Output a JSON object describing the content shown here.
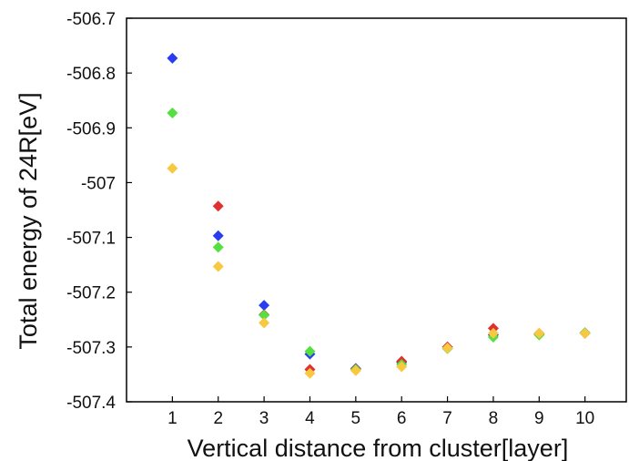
{
  "chart_data": {
    "type": "scatter",
    "title": "",
    "xlabel": "Vertical distance from cluster[layer]",
    "ylabel": "Total energy of 24R[eV]",
    "xlim": [
      0,
      10.9
    ],
    "ylim": [
      -507.4,
      -506.7
    ],
    "x_ticks": [
      1,
      2,
      3,
      4,
      5,
      6,
      7,
      8,
      9,
      10
    ],
    "y_ticks": [
      -506.7,
      -506.8,
      -506.9,
      -507,
      -507.1,
      -507.2,
      -507.3,
      -507.4
    ],
    "grid": false,
    "legend": "none",
    "marker": "diamond",
    "series": [
      {
        "color": "#2a3cf0",
        "x": [
          1,
          2,
          3,
          4,
          5,
          6,
          7,
          8,
          9,
          10
        ],
        "y": [
          -506.773,
          -507.097,
          -507.224,
          -507.313,
          -507.339,
          -507.328,
          -507.3,
          -507.278,
          -507.276,
          -507.274
        ]
      },
      {
        "color": "#e03030",
        "x": [
          2,
          3,
          4,
          5,
          6,
          7,
          8,
          9,
          10
        ],
        "y": [
          -507.043,
          -507.241,
          -507.341,
          -507.34,
          -507.326,
          -507.3,
          -507.266,
          -507.275,
          -507.275
        ]
      },
      {
        "color": "#55e040",
        "x": [
          1,
          2,
          3,
          4,
          5,
          6,
          7,
          8,
          9,
          10
        ],
        "y": [
          -506.873,
          -507.118,
          -507.242,
          -507.308,
          -507.341,
          -507.332,
          -507.303,
          -507.282,
          -507.278,
          -507.274
        ]
      },
      {
        "color": "#f7c840",
        "x": [
          1,
          2,
          3,
          4,
          5,
          6,
          7,
          8,
          9,
          10
        ],
        "y": [
          -506.974,
          -507.153,
          -507.256,
          -507.348,
          -507.343,
          -507.336,
          -507.302,
          -507.275,
          -507.275,
          -507.275
        ]
      }
    ]
  }
}
